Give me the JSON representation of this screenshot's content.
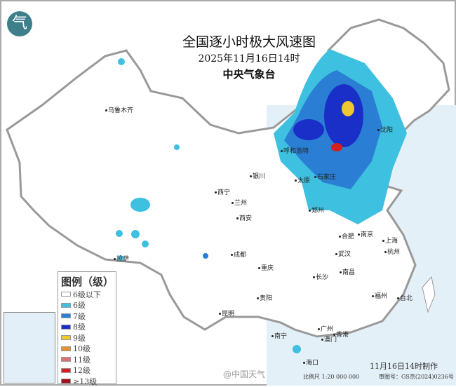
{
  "header": {
    "title": "全国逐小时极大风速图",
    "datetime": "2025年11月16日14时",
    "agency": "中央气象台",
    "logo_icon": "cma-logo-icon"
  },
  "legend": {
    "title": "图例（级）",
    "items": [
      {
        "label": "6级以下",
        "color": "#ffffff"
      },
      {
        "label": "6级",
        "color": "#3ec0e0"
      },
      {
        "label": "7级",
        "color": "#2a7fd4"
      },
      {
        "label": "8级",
        "color": "#1a2fc8"
      },
      {
        "label": "9级",
        "color": "#f0c830"
      },
      {
        "label": "10级",
        "color": "#e8902a"
      },
      {
        "label": "11级",
        "color": "#e07070"
      },
      {
        "label": "12级",
        "color": "#d42020"
      },
      {
        "label": "≥13级",
        "color": "#a01018"
      }
    ]
  },
  "cities": [
    {
      "name": "乌鲁木齐"
    },
    {
      "name": "拉萨"
    },
    {
      "name": "西宁"
    },
    {
      "name": "兰州"
    },
    {
      "name": "银川"
    },
    {
      "name": "呼和浩特"
    },
    {
      "name": "太原"
    },
    {
      "name": "石家庄"
    },
    {
      "name": "沈阳"
    },
    {
      "name": "郑州"
    },
    {
      "name": "西安"
    },
    {
      "name": "合肥"
    },
    {
      "name": "南京"
    },
    {
      "name": "上海"
    },
    {
      "name": "杭州"
    },
    {
      "name": "武汉"
    },
    {
      "name": "成都"
    },
    {
      "name": "重庆"
    },
    {
      "name": "长沙"
    },
    {
      "name": "南昌"
    },
    {
      "name": "贵阳"
    },
    {
      "name": "昆明"
    },
    {
      "name": "福州"
    },
    {
      "name": "台北"
    },
    {
      "name": "南宁"
    },
    {
      "name": "广州"
    },
    {
      "name": "香港"
    },
    {
      "name": "澳门"
    },
    {
      "name": "海口"
    }
  ],
  "footer": {
    "made_time": "11月16日14时制作",
    "scale": "比例尺 1:20 000 000",
    "review_no": "审图号：GS京(2024)0236号",
    "watermark": "@中国天气"
  }
}
